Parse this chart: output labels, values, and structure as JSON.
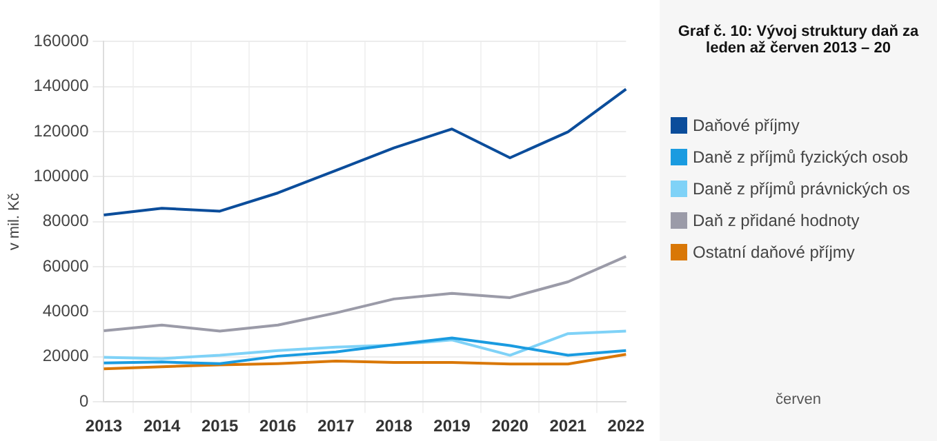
{
  "chart_data": {
    "type": "line",
    "title": "Graf č. 10: Vývoj struktury daň za leden až červen 2013 – 20",
    "ylabel": "v mil. Kč",
    "annotations": [
      "červen"
    ],
    "categories": [
      "2013",
      "2014",
      "2015",
      "2016",
      "2017",
      "2018",
      "2019",
      "2020",
      "2021",
      "2022"
    ],
    "ylim": [
      0,
      160000
    ],
    "yticks": [
      0,
      20000,
      40000,
      60000,
      80000,
      100000,
      120000,
      140000,
      160000
    ],
    "grid": true,
    "legend": "right",
    "marker": "none",
    "line_style": "solid",
    "series": [
      {
        "name": "Daňové příjmy",
        "color": "#0b4d9b",
        "values": [
          83000,
          86000,
          84700,
          92800,
          102800,
          112800,
          121200,
          108400,
          119900,
          138900
        ]
      },
      {
        "name": "Daně z příjmů fyzických osob",
        "color": "#1a9be0",
        "values": [
          17300,
          17700,
          17000,
          20300,
          22200,
          25400,
          28400,
          25000,
          20700,
          22800
        ]
      },
      {
        "name": "Daně z příjmů právnických os",
        "color": "#7fd2f7",
        "values": [
          19800,
          19200,
          20700,
          22800,
          24300,
          25200,
          27500,
          20700,
          30300,
          31400
        ]
      },
      {
        "name": "Daň z přidané hodnoty",
        "color": "#9b9ba8",
        "values": [
          31600,
          34100,
          31400,
          34100,
          39500,
          45700,
          48200,
          46300,
          53300,
          64600
        ]
      },
      {
        "name": "Ostatní daňové příjmy",
        "color": "#d97706",
        "values": [
          14700,
          15600,
          16400,
          17000,
          18100,
          17500,
          17500,
          16800,
          16800,
          21100
        ]
      }
    ]
  }
}
